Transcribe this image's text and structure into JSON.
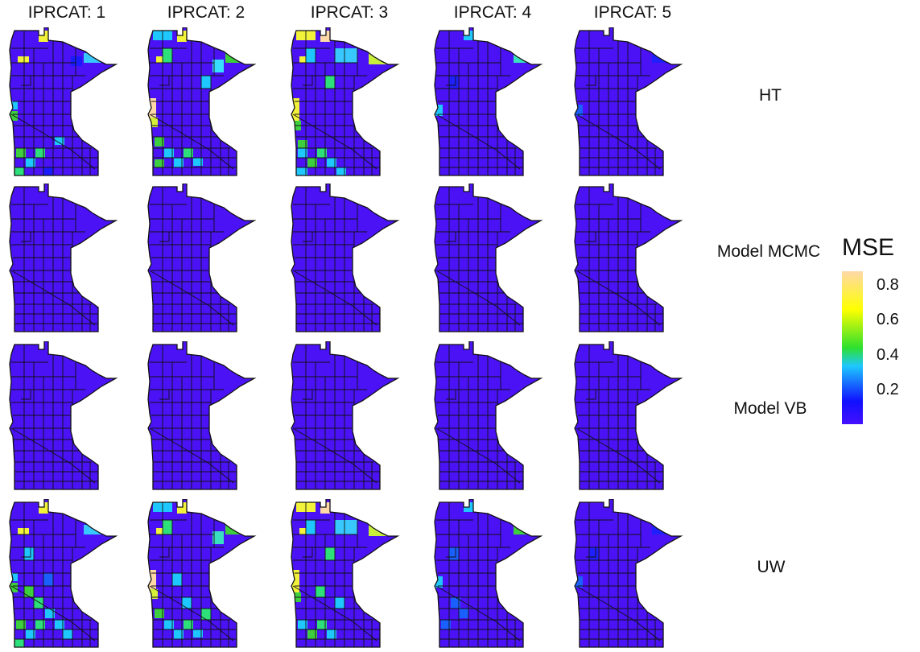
{
  "columns": [
    "IPRCAT: 1",
    "IPRCAT: 2",
    "IPRCAT: 3",
    "IPRCAT: 4",
    "IPRCAT: 5"
  ],
  "rows": [
    "HT",
    "Model MCMC",
    "Model VB",
    "UW"
  ],
  "legend": {
    "title": "MSE",
    "ticks": [
      "0.8",
      "0.6",
      "0.4",
      "0.2"
    ],
    "tick_values": [
      0.8,
      0.6,
      0.4,
      0.2
    ],
    "range": [
      0,
      0.88
    ],
    "colors": [
      "#4410ff",
      "#1010ff",
      "#1ec8ff",
      "#2ee02e",
      "#ffff00",
      "#ffd8a8"
    ]
  },
  "map_fill": {
    "base_color": "#4a12f5",
    "border_color": "#111111"
  }
}
